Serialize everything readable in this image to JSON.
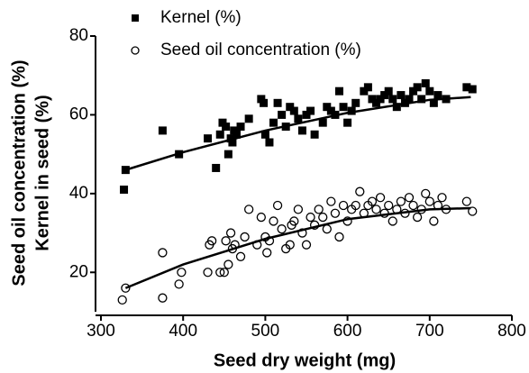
{
  "chart_data": {
    "type": "scatter",
    "xlabel": "Seed dry weight (mg)",
    "ylabel": [
      "Seed oil concentration (%)",
      "Kernel in seed (%)"
    ],
    "xlim": [
      300,
      800
    ],
    "xticks": [
      300,
      400,
      500,
      600,
      700,
      800
    ],
    "ylim": [
      10,
      80
    ],
    "yticks": [
      20,
      40,
      60,
      80
    ],
    "series": [
      {
        "name": "Kernel (%)",
        "color": "#000",
        "marker": "square",
        "x": [
          328,
          330,
          375,
          395,
          430,
          440,
          445,
          448,
          452,
          455,
          458,
          460,
          462,
          465,
          470,
          480,
          495,
          498,
          500,
          505,
          510,
          515,
          520,
          525,
          530,
          535,
          540,
          545,
          550,
          555,
          560,
          570,
          575,
          580,
          585,
          590,
          595,
          600,
          605,
          610,
          620,
          625,
          630,
          635,
          640,
          645,
          650,
          655,
          660,
          665,
          670,
          675,
          680,
          685,
          690,
          695,
          700,
          705,
          710,
          720,
          745,
          752
        ],
        "values": [
          41,
          46,
          56,
          50,
          54,
          46.5,
          55,
          58,
          57,
          50,
          54,
          53,
          56,
          55,
          57,
          59,
          64,
          63,
          55,
          53,
          58,
          63,
          60,
          57,
          62,
          61,
          59,
          56,
          60,
          61,
          55,
          58,
          62,
          61,
          60,
          66,
          62,
          58,
          61,
          63,
          66,
          67,
          64,
          63,
          64,
          65,
          66,
          64,
          62,
          65,
          63,
          64,
          66,
          67,
          64,
          68,
          66,
          63,
          65,
          64,
          67,
          66.5
        ],
        "fit_x": [
          330,
          400,
          500,
          600,
          700,
          750
        ],
        "fit_y": [
          46,
          50.5,
          56,
          60.5,
          63.8,
          64.5
        ]
      },
      {
        "name": "Seed oil concentration (%)",
        "color": "#000",
        "marker": "circle",
        "x": [
          326,
          330,
          375,
          375,
          395,
          398,
          430,
          432,
          435,
          445,
          450,
          452,
          455,
          458,
          460,
          463,
          470,
          475,
          480,
          490,
          495,
          500,
          502,
          505,
          510,
          515,
          520,
          525,
          530,
          532,
          535,
          540,
          545,
          550,
          555,
          560,
          565,
          570,
          575,
          580,
          585,
          590,
          595,
          600,
          605,
          610,
          615,
          620,
          625,
          630,
          635,
          640,
          645,
          650,
          655,
          660,
          665,
          670,
          675,
          680,
          685,
          690,
          695,
          700,
          705,
          710,
          715,
          720,
          745,
          752
        ],
        "values": [
          13,
          16,
          13.5,
          25,
          17,
          20,
          20,
          27,
          28,
          20,
          20,
          28,
          22,
          30,
          26,
          27,
          24,
          29,
          36,
          27,
          34,
          29,
          25,
          28,
          33,
          37,
          31,
          26,
          27,
          32,
          33,
          36,
          30,
          27,
          34,
          32,
          36,
          34,
          31,
          38,
          35,
          29,
          37,
          33,
          36,
          37,
          40.5,
          35,
          37,
          38,
          36,
          39,
          35,
          37,
          33,
          36,
          38,
          35,
          39,
          37,
          34,
          36,
          40,
          38,
          33,
          37,
          39,
          36,
          38,
          35.5
        ],
        "fit_x": [
          330,
          400,
          500,
          600,
          700,
          750
        ],
        "fit_y": [
          16,
          22,
          28.5,
          33.5,
          36,
          36.3
        ]
      }
    ]
  }
}
